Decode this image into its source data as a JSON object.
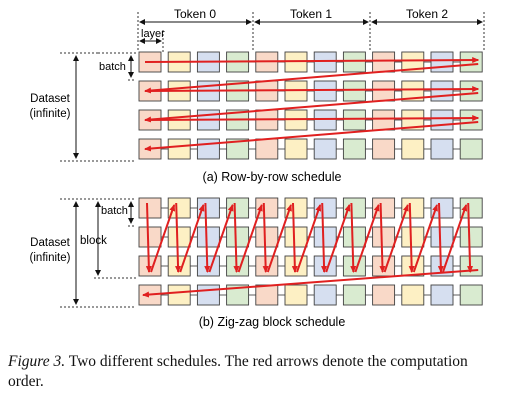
{
  "tokens": [
    "Token 0",
    "Token 1",
    "Token 2"
  ],
  "layer_label": "layer",
  "batch_label": "batch",
  "block_label": "block",
  "dataset_label_line1": "Dataset",
  "dataset_label_line2": "(infinite)",
  "subcaption_a": "(a) Row-by-row schedule",
  "subcaption_b": "(b) Zig-zag block schedule",
  "caption_lead": "Figure 3.",
  "caption_text": " Two different schedules. The red arrows denote the computation order.",
  "grid": {
    "rows": 4,
    "tokens": 3,
    "layers_per_token": 4
  },
  "colors": {
    "layer_fills": [
      "#f9d9c8",
      "#fdf0c4",
      "#d6dff0",
      "#d9ebd0"
    ],
    "box_stroke": "#404040",
    "arrow": "#e02020",
    "dash": "#333333"
  }
}
